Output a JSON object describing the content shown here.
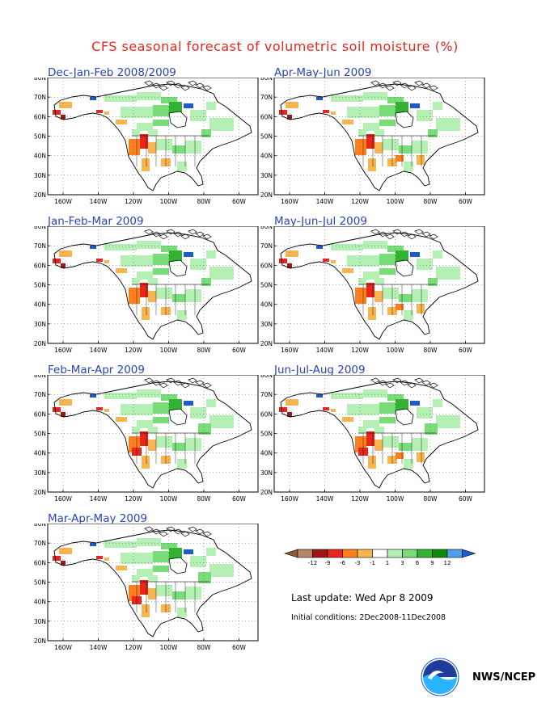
{
  "title": "CFS seasonal forecast of volumetric soil moisture (%)",
  "panels": [
    {
      "title": "Dec-Jan-Feb 2008/2009"
    },
    {
      "title": "Apr-May-Jun 2009"
    },
    {
      "title": "Jan-Feb-Mar 2009"
    },
    {
      "title": "May-Jun-Jul 2009"
    },
    {
      "title": "Feb-Mar-Apr 2009"
    },
    {
      "title": "Jun-Jul-Aug 2009"
    },
    {
      "title": "Mar-Apr-May 2009"
    }
  ],
  "axes": {
    "lat_labels": [
      "80N",
      "70N",
      "60N",
      "50N",
      "40N",
      "30N",
      "20N"
    ],
    "lon_labels": [
      "160W",
      "140W",
      "120W",
      "100W",
      "80W",
      "60W"
    ]
  },
  "legend": {
    "labels": [
      "-12",
      "-9",
      "-6",
      "-3",
      "-1",
      "1",
      "3",
      "6",
      "9",
      "12"
    ],
    "colors": [
      "#8b5a3c",
      "#b4876a",
      "#a01414",
      "#e8261e",
      "#ff7f1e",
      "#f8b450",
      "#ffffff",
      "#b4f0b4",
      "#78dc78",
      "#32b432",
      "#0a8c0a",
      "#4ba0e6",
      "#1e5ac8"
    ]
  },
  "last_update": "Last update: Wed Apr 8 2009",
  "initial_conditions": "Initial conditions: 2Dec2008-11Dec2008",
  "credit": "NWS/NCEP",
  "logo_text": "NOAA"
}
